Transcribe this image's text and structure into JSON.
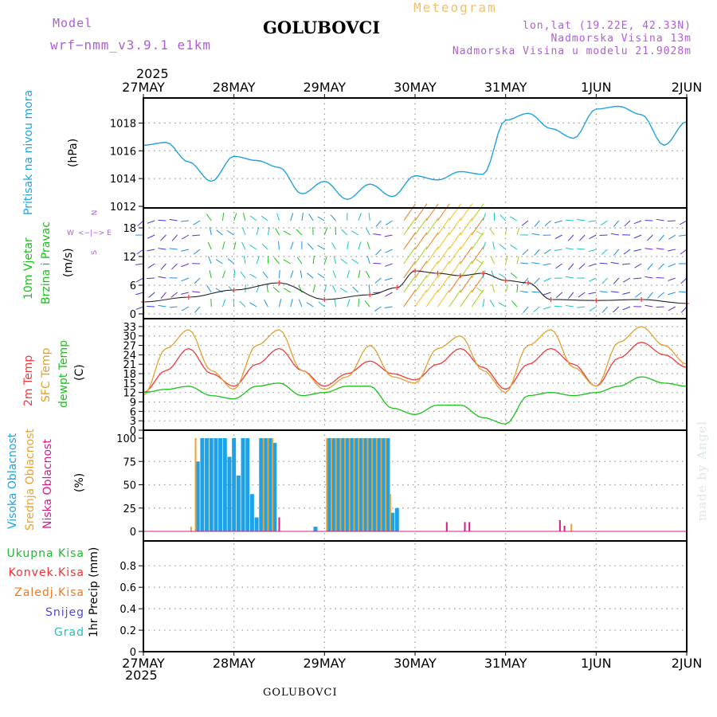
{
  "header": {
    "model_label": "Model",
    "model_name": "wrf−nmm_v3.9.1  e1km",
    "station": "GOLUBOVCI",
    "product": "Meteogram",
    "coords": "lon,lat (19.22E, 42.33N)",
    "elevation": "Nadmorska Visina 13m",
    "model_elevation": "Nadmorska Visina u modelu 21.9028m",
    "watermark": "made by Angel",
    "footer_station": "GOLUBOVCI"
  },
  "colors": {
    "pressure": "#1fa3e0",
    "temp2m": "#ee3b3b",
    "sfc_temp": "#e0a030",
    "dewpoint": "#19c219",
    "high_cloud": "#1ea1e6",
    "mid_cloud": "#e8a330",
    "low_cloud": "#d01c8b",
    "model": "#b05cd6",
    "title_orange": "#f0c070",
    "total_precip": "#22b833",
    "conv_precip": "#ee3333",
    "frozen_precip": "#f07820",
    "snow": "#4a4adc",
    "hail": "#22c0c0"
  },
  "time_axis": {
    "top_year": "2025",
    "bottom_year": "2025",
    "labels": [
      "27MAY",
      "28MAY",
      "29MAY",
      "30MAY",
      "31MAY",
      "1JUN",
      "2JUN"
    ]
  },
  "chart_data": [
    {
      "type": "line",
      "title": "",
      "ylabel_left": "Pritisak na nivou mora",
      "units": "(hPa)",
      "y_ticks": [
        "1012",
        "1014",
        "1016",
        "1018"
      ],
      "ylim": [
        1012,
        1019.8
      ],
      "grid": true,
      "x": [
        0,
        0.25,
        0.5,
        0.75,
        1,
        1.25,
        1.5,
        1.75,
        2,
        2.25,
        2.5,
        2.75,
        3,
        3.25,
        3.5,
        3.75,
        4,
        4.25,
        4.5,
        4.75,
        5,
        5.25,
        5.5,
        5.75,
        6
      ],
      "series": [
        {
          "values": [
            1016.4,
            1016.6,
            1015.2,
            1013.8,
            1015.6,
            1015.3,
            1014.8,
            1012.9,
            1013.8,
            1012.5,
            1013.6,
            1012.7,
            1014.2,
            1013.9,
            1014.5,
            1014.3,
            1018.2,
            1018.7,
            1017.6,
            1016.9,
            1019.0,
            1019.2,
            1018.6,
            1016.4,
            1018.1
          ]
        }
      ]
    },
    {
      "type": "scatter",
      "title": "",
      "ylabel_left": [
        "10m Vjetar",
        "Brzina i Pravac"
      ],
      "units": "(m/s)",
      "compass": {
        "north": "N",
        "west": "W",
        "east": "E",
        "south": "S"
      },
      "y_ticks": [
        "0",
        "6",
        "12",
        "18"
      ],
      "ylim": [
        -1,
        22
      ],
      "grid": true,
      "x": [
        0,
        0.5,
        1,
        1.5,
        2,
        2.5,
        2.8,
        3,
        3.25,
        3.5,
        3.75,
        4,
        4.25,
        4.5,
        5,
        5.5,
        6
      ],
      "series": [
        {
          "values": [
            2.5,
            3.5,
            5.0,
            6.5,
            3.0,
            4.0,
            5.5,
            9.0,
            8.5,
            8.0,
            8.5,
            7.0,
            6.5,
            3.0,
            2.8,
            3.0,
            2.2
          ]
        }
      ]
    },
    {
      "type": "line",
      "title": "",
      "ylabel_left": [
        "2m Temp",
        "SFC Temp",
        "dewpt Temp"
      ],
      "units": "(C)",
      "y_ticks": [
        "0",
        "3",
        "6",
        "9",
        "12",
        "15",
        "18",
        "21",
        "24",
        "27",
        "30",
        "33"
      ],
      "ylim": [
        0,
        35
      ],
      "grid": true,
      "x": [
        0,
        0.25,
        0.5,
        0.75,
        1,
        1.25,
        1.5,
        1.75,
        2,
        2.25,
        2.5,
        2.75,
        3,
        3.25,
        3.5,
        3.75,
        4,
        4.25,
        4.5,
        4.75,
        5,
        5.25,
        5.5,
        5.75,
        6
      ],
      "series": [
        {
          "name": "2m Temp",
          "values": [
            12,
            19,
            26,
            18,
            14,
            21,
            26,
            19,
            14,
            18,
            22,
            18,
            16,
            21,
            26,
            20,
            13,
            21,
            26,
            21,
            14,
            23,
            28,
            24,
            20
          ]
        },
        {
          "name": "SFC Temp",
          "values": [
            11,
            26,
            32,
            19,
            13,
            27,
            32,
            19,
            13,
            17,
            27,
            17,
            15,
            26,
            30,
            19,
            12,
            27,
            32,
            20,
            14,
            28,
            33,
            27,
            21
          ]
        },
        {
          "name": "dewpt Temp",
          "values": [
            12,
            13,
            14,
            11,
            10,
            14,
            15,
            11,
            12,
            14,
            14,
            7,
            5,
            8,
            8,
            4,
            2,
            11,
            12,
            11,
            12,
            14,
            17,
            15,
            14
          ]
        }
      ]
    },
    {
      "type": "bar",
      "title": "",
      "ylabel_left": [
        "Visoka Oblacnost",
        "Srednja Oblacnost",
        "Niska Oblacnost"
      ],
      "units": "(%)",
      "y_ticks": [
        "0",
        "25",
        "50",
        "75",
        "100"
      ],
      "ylim": [
        0,
        100
      ],
      "grid": true,
      "series": [
        {
          "name": "Visoka Oblacnost",
          "x": [
            0.6,
            0.65,
            0.7,
            0.75,
            0.8,
            0.85,
            0.9,
            0.95,
            1.0,
            1.05,
            1.1,
            1.15,
            1.2,
            1.25,
            1.3,
            1.35,
            1.4,
            1.45,
            1.9,
            2.05,
            2.1,
            2.15,
            2.2,
            2.25,
            2.3,
            2.35,
            2.4,
            2.45,
            2.5,
            2.55,
            2.6,
            2.65,
            2.7,
            2.75,
            2.8
          ],
          "values": [
            75,
            100,
            100,
            100,
            100,
            100,
            100,
            80,
            100,
            60,
            100,
            100,
            40,
            15,
            100,
            100,
            100,
            95,
            5,
            100,
            100,
            100,
            100,
            100,
            100,
            100,
            100,
            100,
            100,
            100,
            100,
            100,
            100,
            20,
            25
          ]
        },
        {
          "name": "Srednja Oblacnost",
          "x": [
            0.5,
            0.55,
            1.3,
            1.35,
            1.4,
            2.0,
            2.05,
            2.1,
            2.15,
            2.2,
            2.25,
            2.3,
            2.35,
            2.4,
            2.45,
            2.5,
            2.55,
            2.6,
            2.65,
            2.7,
            4.7
          ],
          "values": [
            5,
            100,
            100,
            100,
            100,
            100,
            100,
            100,
            100,
            100,
            100,
            100,
            100,
            100,
            100,
            100,
            100,
            100,
            100,
            40,
            8
          ]
        },
        {
          "name": "Niska Oblacnost",
          "x": [
            1.5,
            3.35,
            3.55,
            3.6,
            4.6,
            4.65
          ],
          "values": [
            15,
            10,
            10,
            10,
            12,
            6
          ]
        }
      ]
    },
    {
      "type": "line",
      "title": "",
      "legend": [
        "Ukupna Kisa",
        "Konvek.Kisa",
        "Zaledj.Kisa",
        "Snijeg",
        "Grad"
      ],
      "ylabel": "1hr Precip (mm)",
      "y_ticks": [
        "0",
        "0.2",
        "0.4",
        "0.6",
        "0.8"
      ],
      "ylim": [
        0,
        0.95
      ],
      "grid": true,
      "x": [
        0,
        6
      ],
      "series": [
        {
          "name": "Ukupna Kisa",
          "values": [
            0,
            0
          ]
        }
      ]
    }
  ]
}
